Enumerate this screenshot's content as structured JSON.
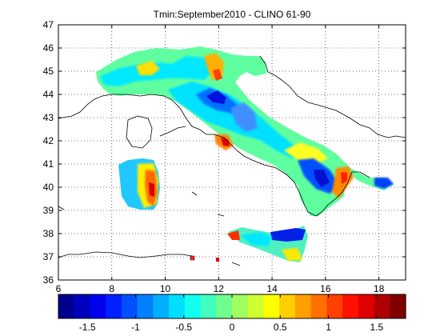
{
  "map": {
    "title": "Tmin:September2010 - CLINO 61-90",
    "x_ticks": [
      "6",
      "8",
      "10",
      "12",
      "14",
      "16",
      "18"
    ],
    "y_ticks": [
      "36",
      "37",
      "38",
      "39",
      "40",
      "41",
      "42",
      "43",
      "44",
      "45",
      "46",
      "47"
    ],
    "x_range": [
      6,
      19
    ],
    "y_range": [
      36,
      47
    ],
    "grid": "dotted"
  },
  "colorbar": {
    "range": [
      -1.8,
      1.8
    ],
    "tick_labels": [
      "-1.5",
      "-1",
      "-0.5",
      "0",
      "0.5",
      "1",
      "1.5"
    ],
    "colors": [
      "#00008f",
      "#0000bf",
      "#0000ef",
      "#0020ff",
      "#0050ff",
      "#0080ff",
      "#00afff",
      "#00dfff",
      "#10ffef",
      "#40ffbf",
      "#70ff8f",
      "#9fff60",
      "#cfff30",
      "#ffff00",
      "#ffcf00",
      "#ff9f00",
      "#ff7000",
      "#ff4000",
      "#ff1000",
      "#df0000",
      "#af0000",
      "#800000"
    ]
  }
}
